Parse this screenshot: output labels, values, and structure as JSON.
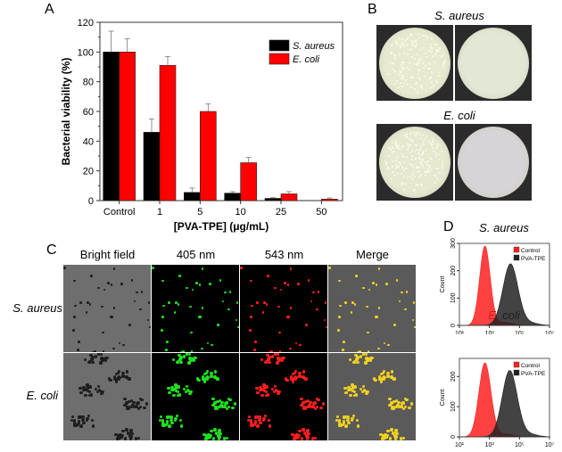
{
  "panels": {
    "a": "A",
    "b": "B",
    "c": "C",
    "d": "D"
  },
  "chart_data": [
    {
      "type": "bar",
      "panel": "A",
      "categories": [
        "Control",
        "1",
        "5",
        "10",
        "25",
        "50"
      ],
      "series": [
        {
          "name": "S. aureus",
          "color": "#000000",
          "values": [
            100,
            46,
            5.5,
            5,
            1.5,
            0
          ],
          "errors": [
            14,
            9,
            3,
            1,
            0.5,
            0
          ]
        },
        {
          "name": "E. coli",
          "color": "#ff0000",
          "values": [
            100,
            91,
            60,
            25.5,
            4.5,
            1
          ],
          "errors": [
            9,
            6,
            5,
            3.5,
            1.5,
            0.8
          ]
        }
      ],
      "xlabel": "[PVA-TPE] (μg/mL)",
      "ylabel": "Bacterial viability (%)",
      "ylim": [
        0,
        120
      ],
      "yticks": [
        "0",
        "20",
        "40",
        "60",
        "80",
        "100",
        "120"
      ],
      "legend": "top-right"
    },
    {
      "type": "area",
      "panel": "D",
      "title": "S. aureus",
      "ylabel": "Count",
      "ylim": [
        0,
        300
      ],
      "yticks": [
        "0",
        "100",
        "200",
        "300"
      ],
      "xticks": [
        "10¹",
        "10³",
        "10⁵",
        "10⁷"
      ],
      "xlim_log10": [
        1,
        7
      ],
      "series": [
        {
          "name": "Control",
          "color": "#ff2020",
          "peak_log10": 2.7,
          "peak_count": 290,
          "width": 0.35
        },
        {
          "name": "PVA-TPE",
          "color": "#222222",
          "peak_log10": 4.4,
          "peak_count": 225,
          "width": 0.5
        }
      ]
    },
    {
      "type": "area",
      "panel": "D",
      "title": "E. coli",
      "ylabel": "Count",
      "ylim": [
        0,
        260
      ],
      "yticks": [
        "0",
        "100",
        "200"
      ],
      "xticks": [
        "10¹",
        "10³",
        "10⁵",
        "10⁷"
      ],
      "xlim_log10": [
        1,
        7
      ],
      "series": [
        {
          "name": "Control",
          "color": "#ff2020",
          "peak_log10": 2.7,
          "peak_count": 245,
          "width": 0.4
        },
        {
          "name": "PVA-TPE",
          "color": "#222222",
          "peak_log10": 4.35,
          "peak_count": 220,
          "width": 0.5
        }
      ]
    }
  ],
  "plates": {
    "title_top": "S. aureus",
    "title_bottom": "E. coli"
  },
  "microscopy": {
    "columns": [
      "Bright field",
      "405 nm",
      "543 nm",
      "Merge"
    ],
    "rows": [
      "S. aureus",
      "E. coli"
    ]
  }
}
